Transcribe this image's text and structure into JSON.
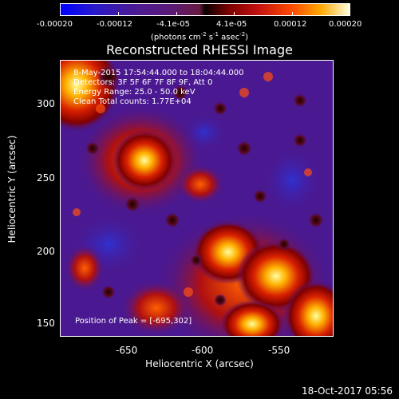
{
  "colorbar": {
    "ticks": [
      "-0.00020",
      "-0.00012",
      "-4.1e-05",
      "4.1e-05",
      "0.00012",
      "0.00020"
    ],
    "units_main": "(photons cm",
    "units_exp1": "-2",
    "units_mid": " s",
    "units_exp2": "-1",
    "units_mid2": " asec",
    "units_exp3": "-2",
    "units_end": ")"
  },
  "title": "Reconstructed RHESSI Image",
  "annotations": {
    "time": "8-May-2015 17:54:44.000 to 18:04:44.000",
    "detectors": "Detectors: 3F 5F 6F 7F 8F 9F, Att 0",
    "energy": "Energy Range: 25.0 - 50.0 keV",
    "clean": "Clean     Total counts: 1.77E+04",
    "peak": "Position of Peak = [-695,302]"
  },
  "axes": {
    "xlabel": "Heliocentric X (arcsec)",
    "ylabel": "Heliocentric Y (arcsec)",
    "xticks": [
      "-650",
      "-600",
      "-550"
    ],
    "yticks": [
      "300",
      "250",
      "200",
      "150"
    ]
  },
  "timestamp": "18-Oct-2017 05:56",
  "colors": {
    "background": "#000000",
    "frame": "#ffffff",
    "low": "#4a1890",
    "high": "#ffffe0"
  }
}
